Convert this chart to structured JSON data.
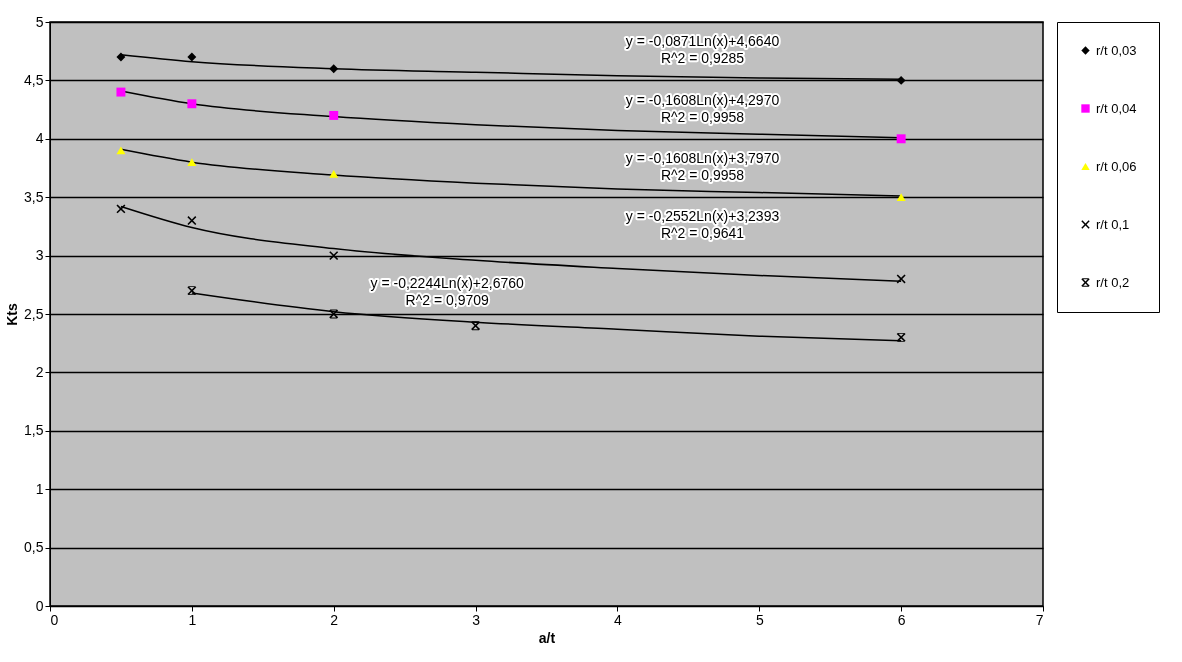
{
  "chart_data": {
    "type": "scatter",
    "xlabel": "a/t",
    "ylabel": "Kts",
    "xlim": [
      0,
      7
    ],
    "xticks": [
      0,
      1,
      2,
      3,
      4,
      5,
      6,
      7
    ],
    "ylim": [
      0,
      5
    ],
    "yticks": [
      0,
      {
        "value": 0.5,
        "label": "0,5"
      },
      1,
      {
        "value": 1.5,
        "label": "1,5"
      },
      2,
      {
        "value": 2.5,
        "label": "2,5"
      },
      3,
      {
        "value": 3.5,
        "label": "3,5"
      },
      4,
      {
        "value": 4.5,
        "label": "4,5"
      },
      5
    ],
    "grid": "y",
    "legend": "right",
    "series": [
      {
        "name": "r/t 0,03",
        "color": "#000000",
        "marker": "diamond",
        "x": [
          0.5,
          1,
          2,
          6
        ],
        "values": [
          4.7,
          4.7,
          4.6,
          4.5
        ]
      },
      {
        "name": "r/t 0,04",
        "color": "#ff00ff",
        "marker": "square",
        "x": [
          0.5,
          1,
          2,
          6
        ],
        "values": [
          4.4,
          4.3,
          4.2,
          4.0
        ]
      },
      {
        "name": "r/t 0,06",
        "color": "#ffff00",
        "marker": "triangle",
        "x": [
          0.5,
          1,
          2,
          6
        ],
        "values": [
          3.9,
          3.8,
          3.7,
          3.5
        ]
      },
      {
        "name": "r/t 0,1",
        "color": "#000000",
        "marker": "cross",
        "x": [
          0.5,
          1,
          2,
          6
        ],
        "values": [
          3.4,
          3.3,
          3.0,
          2.8
        ]
      },
      {
        "name": "r/t 0,2",
        "color": "#000000",
        "marker": "star",
        "x": [
          1,
          2,
          3,
          6
        ],
        "values": [
          2.7,
          2.5,
          2.4,
          2.3
        ]
      },
      {
        "type": "line",
        "color": "#000000",
        "x": [
          0.5,
          1,
          2,
          3,
          4,
          5,
          6
        ],
        "values": [
          4.72,
          4.66,
          4.6,
          4.57,
          4.54,
          4.52,
          4.51
        ]
      },
      {
        "type": "line",
        "color": "#000000",
        "x": [
          0.5,
          1,
          2,
          3,
          4,
          5,
          6
        ],
        "values": [
          4.41,
          4.3,
          4.19,
          4.12,
          4.07,
          4.04,
          4.01
        ]
      },
      {
        "type": "line",
        "color": "#000000",
        "x": [
          0.5,
          1,
          2,
          3,
          4,
          5,
          6
        ],
        "values": [
          3.91,
          3.8,
          3.69,
          3.62,
          3.57,
          3.54,
          3.51
        ]
      },
      {
        "type": "line",
        "color": "#000000",
        "x": [
          0.5,
          1,
          2,
          3,
          4,
          5,
          6
        ],
        "values": [
          3.42,
          3.24,
          3.06,
          2.96,
          2.89,
          2.83,
          2.78
        ]
      },
      {
        "type": "line",
        "color": "#000000",
        "x": [
          1,
          2,
          3,
          4,
          5,
          6
        ],
        "values": [
          2.68,
          2.52,
          2.43,
          2.37,
          2.31,
          2.27
        ]
      }
    ],
    "annotations": [
      "y = -0,0871Ln(x)+4,6640\nR^2 = 0,9285",
      "y = -0,1608Ln(x)+4,2970\nR^2 = 0,9958",
      "y = -0,1608Ln(x)+3,7970\nR^2 = 0,9958",
      "y = -0,2552Ln(x)+3,2393\nR^2 = 0,9641",
      "y = -0,2244Ln(x)+2,6760\nR^2 = 0,9709"
    ]
  }
}
